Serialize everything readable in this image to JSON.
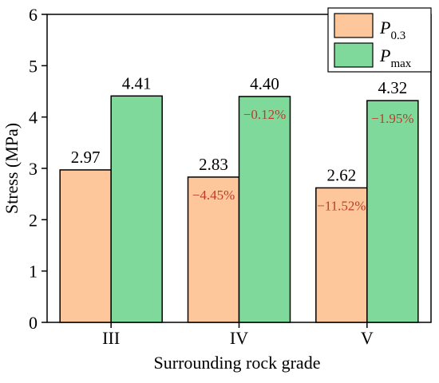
{
  "chart_data": {
    "type": "bar",
    "categories": [
      "III",
      "IV",
      "V"
    ],
    "series": [
      {
        "name_main": "P",
        "name_sub": "0.3",
        "color": "#FDC79B",
        "values": [
          2.97,
          2.83,
          2.62
        ],
        "change_labels": [
          "",
          "−4.45%",
          "−11.52%"
        ]
      },
      {
        "name_main": "P",
        "name_sub": "max",
        "color": "#7FD99A",
        "values": [
          4.41,
          4.4,
          4.32
        ],
        "change_labels": [
          "",
          "−0.12%",
          "−1.95%"
        ]
      }
    ],
    "value_labels": [
      [
        "2.97",
        "2.83",
        "2.62"
      ],
      [
        "4.41",
        "4.40",
        "4.32"
      ]
    ],
    "xlabel": "Surrounding rock grade",
    "ylabel": "Stress (MPa)",
    "ylim": [
      0,
      6
    ],
    "yticks": [
      "0",
      "1",
      "2",
      "3",
      "4",
      "5",
      "6"
    ],
    "legend_position": "top-right",
    "pct_color": "#C0392B",
    "grid": false
  }
}
